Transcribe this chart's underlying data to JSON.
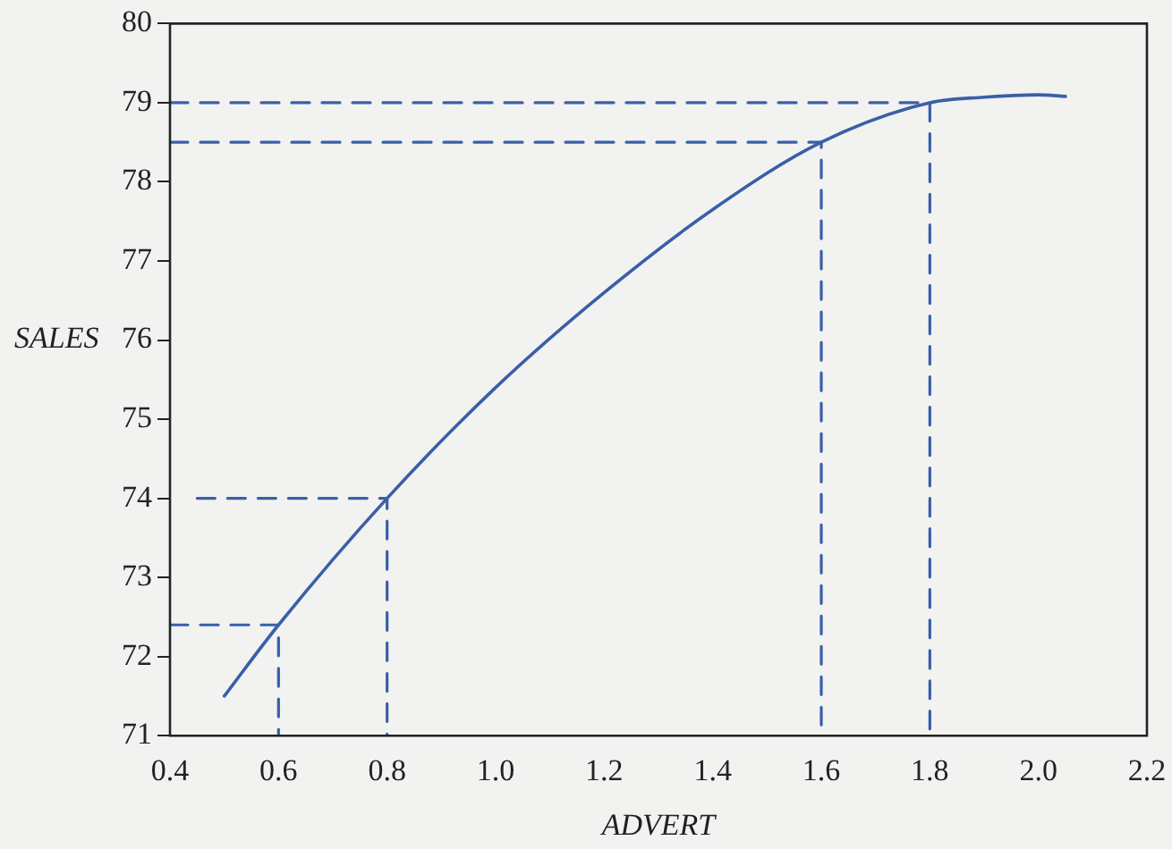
{
  "chart_data": {
    "type": "line",
    "xlabel": "ADVERT",
    "ylabel": "SALES",
    "xlim": [
      0.4,
      2.2
    ],
    "xticks": [
      {
        "value": 0.4,
        "label": "0.4"
      },
      {
        "value": 0.6,
        "label": "0.6"
      },
      {
        "value": 0.8,
        "label": "0.8"
      },
      {
        "value": 1.0,
        "label": "1.0"
      },
      {
        "value": 1.2,
        "label": "1.2"
      },
      {
        "value": 1.4,
        "label": "1.4"
      },
      {
        "value": 1.6,
        "label": "1.6"
      },
      {
        "value": 1.8,
        "label": "1.8"
      },
      {
        "value": 2.0,
        "label": "2.0"
      },
      {
        "value": 2.2,
        "label": "2.2"
      }
    ],
    "ylim": [
      71,
      80
    ],
    "yticks": [
      71,
      72,
      73,
      74,
      75,
      76,
      77,
      78,
      79,
      80
    ],
    "grid": false,
    "marker": "none",
    "series": [
      {
        "color": "#3a5fa8",
        "line_style": "solid",
        "x": [
          0.5,
          0.6,
          0.8,
          1.0,
          1.2,
          1.4,
          1.6,
          1.8,
          1.9,
          2.0,
          2.05
        ],
        "values": [
          71.5,
          72.4,
          74.0,
          75.4,
          76.6,
          77.65,
          78.5,
          79.0,
          79.07,
          79.1,
          79.08
        ]
      },
      {
        "color": "#3a5fa8",
        "line_style": "dashed",
        "x": [
          0.4,
          0.6,
          0.6
        ],
        "values": [
          72.4,
          72.4,
          71
        ]
      },
      {
        "color": "#3a5fa8",
        "line_style": "dashed",
        "x": [
          0.45,
          0.8,
          0.8
        ],
        "values": [
          74,
          74,
          71
        ]
      },
      {
        "color": "#3a5fa8",
        "line_style": "dashed",
        "x": [
          0.4,
          1.6,
          1.6
        ],
        "values": [
          78.5,
          78.5,
          71
        ]
      },
      {
        "color": "#3a5fa8",
        "line_style": "dashed",
        "x": [
          0.4,
          1.8,
          1.8
        ],
        "values": [
          79,
          79,
          71
        ]
      }
    ]
  }
}
